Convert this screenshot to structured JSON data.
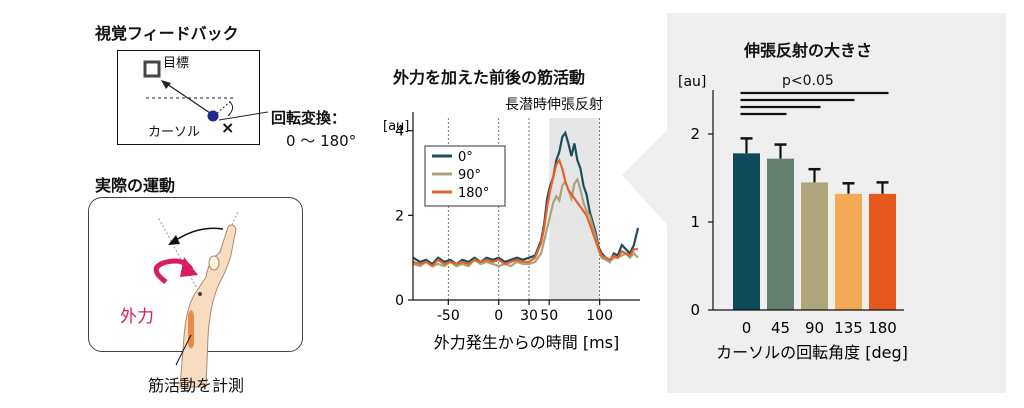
{
  "visual_feedback": {
    "title": "視覚フィードバック",
    "target_label": "目標",
    "cursor_label": "カーソル",
    "cross": "×",
    "rotation_title": "回転変換：",
    "rotation_range": "0 ～ 180°"
  },
  "actual_motion": {
    "title": "実際の運動",
    "force_label": "外力",
    "measure_label": "筋活動を計測"
  },
  "emg_chart": {
    "title": "外力を加えた前後の筋活動",
    "band_label": "長潜時伸張反射",
    "colors": {
      "s0": "#1d4e5e",
      "s90": "#a8a47a",
      "s180": "#e8602a"
    },
    "chart_data": {
      "type": "line",
      "title": "外力を加えた前後の筋活動",
      "xlabel": "外力発生からの時間 [ms]",
      "ylabel": "[au]",
      "xlim": [
        -85,
        140
      ],
      "ylim": [
        0,
        4.3
      ],
      "xticks": [
        -50,
        0,
        30,
        50,
        100
      ],
      "yticks": [
        0,
        2,
        4
      ],
      "dotted_vlines": [
        -50,
        0,
        30,
        100
      ],
      "shaded_band": [
        50,
        100
      ],
      "legend": [
        "0°",
        "90°",
        "180°"
      ],
      "series": [
        {
          "name": "0°",
          "x": [
            -85,
            -78,
            -72,
            -66,
            -60,
            -54,
            -48,
            -42,
            -36,
            -30,
            -24,
            -18,
            -12,
            -6,
            0,
            6,
            12,
            18,
            24,
            30,
            36,
            42,
            45,
            48,
            51,
            54,
            57,
            60,
            63,
            66,
            69,
            72,
            75,
            78,
            81,
            84,
            87,
            90,
            93,
            96,
            99,
            102,
            106,
            110,
            114,
            118,
            122,
            126,
            130,
            134,
            138
          ],
          "y": [
            1.0,
            0.9,
            0.95,
            0.85,
            1.0,
            0.9,
            0.95,
            0.85,
            0.95,
            0.9,
            1.0,
            0.9,
            1.0,
            0.95,
            1.0,
            0.9,
            0.95,
            1.0,
            0.95,
            1.0,
            1.05,
            1.4,
            1.8,
            2.4,
            2.7,
            2.9,
            3.3,
            3.5,
            3.85,
            3.95,
            3.7,
            3.4,
            3.7,
            3.3,
            3.1,
            2.7,
            2.5,
            2.1,
            1.85,
            1.6,
            1.25,
            1.1,
            1.0,
            0.9,
            1.1,
            1.05,
            1.3,
            1.2,
            1.1,
            1.3,
            1.7
          ]
        },
        {
          "name": "90°",
          "x": [
            -85,
            -78,
            -72,
            -66,
            -60,
            -54,
            -48,
            -42,
            -36,
            -30,
            -24,
            -18,
            -12,
            -6,
            0,
            6,
            12,
            18,
            24,
            30,
            36,
            42,
            45,
            48,
            51,
            54,
            57,
            60,
            63,
            66,
            69,
            72,
            75,
            78,
            81,
            84,
            87,
            90,
            93,
            96,
            99,
            102,
            106,
            110,
            114,
            118,
            122,
            126,
            130,
            134,
            138
          ],
          "y": [
            0.85,
            0.8,
            0.9,
            0.8,
            0.85,
            0.8,
            0.9,
            0.8,
            0.85,
            0.8,
            0.95,
            0.85,
            0.9,
            0.85,
            0.8,
            0.85,
            0.8,
            0.9,
            0.85,
            0.85,
            0.9,
            1.1,
            1.4,
            1.7,
            2.0,
            2.3,
            2.45,
            2.35,
            2.7,
            2.8,
            2.6,
            2.4,
            2.75,
            2.85,
            2.6,
            2.3,
            2.1,
            2.0,
            1.75,
            1.5,
            1.2,
            1.0,
            0.95,
            0.9,
            1.0,
            1.0,
            1.05,
            1.1,
            1.0,
            1.1,
            1.0
          ]
        },
        {
          "name": "180°",
          "x": [
            -85,
            -78,
            -72,
            -66,
            -60,
            -54,
            -48,
            -42,
            -36,
            -30,
            -24,
            -18,
            -12,
            -6,
            0,
            6,
            12,
            18,
            24,
            30,
            36,
            42,
            45,
            48,
            51,
            54,
            57,
            60,
            63,
            66,
            69,
            72,
            75,
            78,
            81,
            84,
            87,
            90,
            93,
            96,
            99,
            102,
            106,
            110,
            114,
            118,
            122,
            126,
            130,
            134,
            138
          ],
          "y": [
            0.9,
            0.85,
            0.9,
            0.8,
            0.95,
            0.85,
            0.9,
            0.85,
            0.9,
            0.85,
            0.95,
            0.9,
            0.95,
            0.9,
            0.95,
            0.85,
            0.9,
            0.95,
            0.9,
            0.9,
            1.0,
            1.35,
            1.7,
            2.2,
            2.6,
            2.9,
            3.2,
            3.3,
            3.1,
            2.8,
            2.6,
            2.5,
            2.4,
            2.3,
            2.2,
            2.1,
            2.0,
            1.8,
            1.6,
            1.4,
            1.2,
            1.05,
            1.0,
            0.95,
            1.05,
            1.0,
            1.15,
            1.1,
            1.05,
            1.2,
            1.2
          ]
        }
      ]
    }
  },
  "bar_chart": {
    "title": "伸張反射の大きさ",
    "sig_label": "p<0.05",
    "chart_data": {
      "type": "bar",
      "title": "伸張反射の大きさ",
      "xlabel": "カーソルの回転角度 [deg]",
      "ylabel": "[au]",
      "ylim": [
        0,
        2.5
      ],
      "yticks": [
        0,
        1,
        2
      ],
      "categories": [
        "0",
        "45",
        "90",
        "135",
        "180"
      ],
      "values": [
        1.78,
        1.72,
        1.45,
        1.32,
        1.32
      ],
      "errors": [
        0.17,
        0.16,
        0.15,
        0.12,
        0.13
      ],
      "colors": [
        "#0f4a5a",
        "#66806f",
        "#aea57a",
        "#f4aa54",
        "#e6591d"
      ],
      "significance_lines": [
        [
          0,
          4
        ],
        [
          0,
          3
        ],
        [
          0,
          2
        ],
        [
          0,
          1
        ]
      ]
    }
  }
}
